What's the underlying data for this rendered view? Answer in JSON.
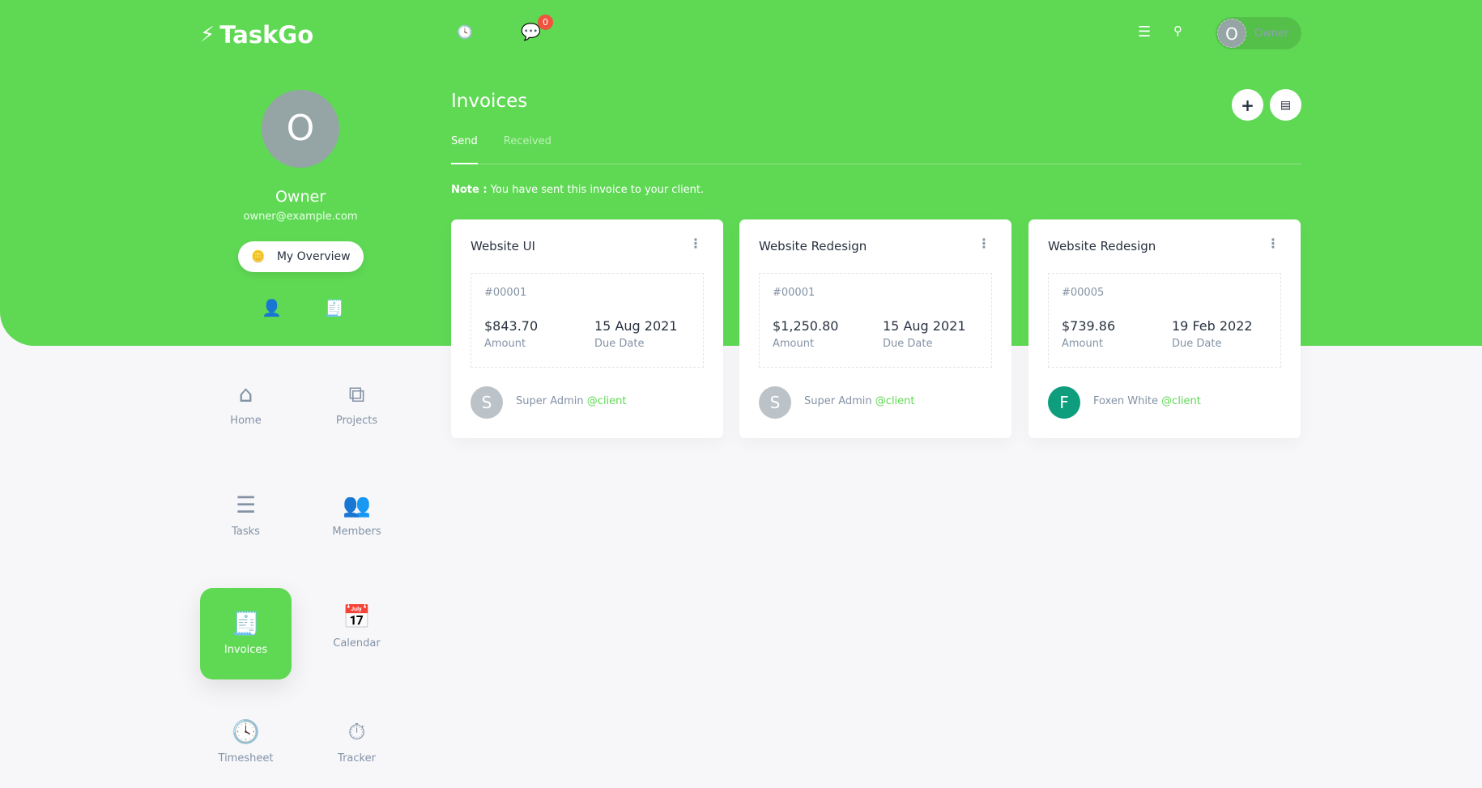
{
  "brand": {
    "name": "TaskGo",
    "accent": "#5fd954"
  },
  "topbar": {
    "notification_count": "0",
    "user_initial": "O",
    "user_name": "Owner"
  },
  "profile": {
    "initial": "O",
    "name": "Owner",
    "email": "owner@example.com",
    "overview_label": "My Overview"
  },
  "nav": [
    {
      "label": "Home",
      "icon": "home-icon"
    },
    {
      "label": "Projects",
      "icon": "project-diagram-icon"
    },
    {
      "label": "Tasks",
      "icon": "tasks-icon"
    },
    {
      "label": "Members",
      "icon": "users-icon"
    },
    {
      "label": "Invoices",
      "icon": "receipt-icon",
      "active": true
    },
    {
      "label": "Calendar",
      "icon": "calendar-icon"
    },
    {
      "label": "Timesheet",
      "icon": "clock-icon"
    },
    {
      "label": "Tracker",
      "icon": "stopwatch-icon"
    }
  ],
  "page": {
    "title": "Invoices",
    "tabs": [
      "Send",
      "Received"
    ],
    "active_tab": "Send",
    "note_label": "Note :",
    "note_text": " You have sent this invoice to your client."
  },
  "invoices": [
    {
      "title": "Website UI",
      "number": "#00001",
      "amount": "$843.70",
      "amount_label": "Amount",
      "due": "15 Aug 2021",
      "due_label": "Due Date",
      "client_initial": "S",
      "client_name": "Super Admin",
      "client_handle": "@client",
      "avatar_color": "#bcc3c8"
    },
    {
      "title": "Website Redesign",
      "number": "#00001",
      "amount": "$1,250.80",
      "amount_label": "Amount",
      "due": "15 Aug 2021",
      "due_label": "Due Date",
      "client_initial": "S",
      "client_name": "Super Admin",
      "client_handle": "@client",
      "avatar_color": "#bcc3c8"
    },
    {
      "title": "Website Redesign",
      "number": "#00005",
      "amount": "$739.86",
      "amount_label": "Amount",
      "due": "19 Feb 2022",
      "due_label": "Due Date",
      "client_initial": "F",
      "client_name": "Foxen White",
      "client_handle": "@client",
      "avatar_color": "#0e9e7e"
    }
  ]
}
